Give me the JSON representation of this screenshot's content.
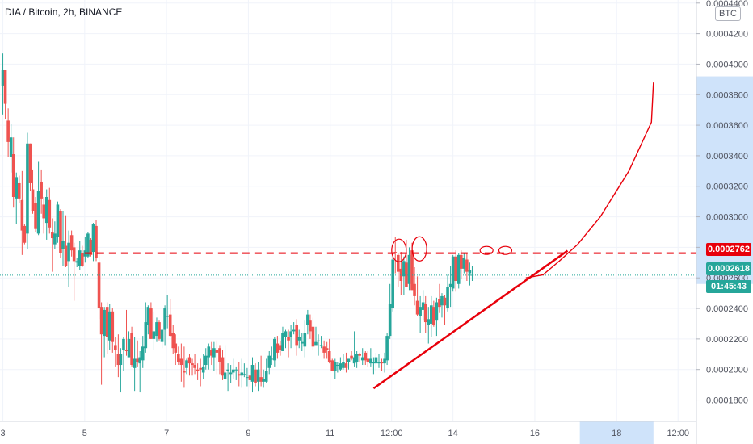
{
  "header": {
    "title": "DIA / Bitcoin, 2h, BINANCE"
  },
  "scale": {
    "currency": "BTC"
  },
  "price_labels": {
    "resistance": "0.0002762",
    "last_price": "0.0002618",
    "countdown": "01:45:43"
  },
  "colors": {
    "up": "#26a69a",
    "down": "#ef5350",
    "drawing": "#e8000b",
    "last_price": "#26a69a",
    "countdown_bg": "#26a69a",
    "highlight": "#cfe3fa"
  },
  "chart_data": {
    "type": "candlestick",
    "title": "DIA / Bitcoin, 2h, BINANCE",
    "ylim": [
      0.000166,
      0.000442
    ],
    "y_ticks": [
      "0.0001800",
      "0.0002000",
      "0.0002200",
      "0.0002400",
      "0.0002600",
      "0.0002800",
      "0.0003000",
      "0.0003200",
      "0.0003400",
      "0.0003600",
      "0.0003800",
      "0.0004000",
      "0.0004200",
      "0.0004400"
    ],
    "y_tick_values": [
      0.00018,
      0.0002,
      0.00022,
      0.00024,
      0.00026,
      0.00028,
      0.0003,
      0.00032,
      0.00034,
      0.00036,
      0.00038,
      0.0004,
      0.00042,
      0.00044
    ],
    "x_ticks": [
      "3",
      "5",
      "7",
      "9",
      "11",
      "12:00",
      "14",
      "16",
      "18",
      "12:00"
    ],
    "x_tick_days": [
      0,
      2,
      4,
      6,
      8,
      9.5,
      11,
      13,
      15,
      16.5
    ],
    "xlim": [
      -0.07,
      16.95
    ],
    "last_price": 0.0002618,
    "resistance": 0.0002762,
    "trendline": [
      [
        9.06,
        0.0001876
      ],
      [
        13.8,
        0.0002778
      ]
    ],
    "projection": [
      [
        12.78,
        0.00026
      ],
      [
        13.2,
        0.000262
      ],
      [
        13.6,
        0.000271
      ],
      [
        14.05,
        0.000282
      ],
      [
        14.6,
        0.0003
      ],
      [
        15.3,
        0.00033
      ],
      [
        15.85,
        0.000362
      ],
      [
        15.9,
        0.000388
      ]
    ],
    "candles": [
      [
        -0.0,
        0.000386,
        0.000407,
        0.000367,
        0.000396
      ],
      [
        0.06,
        0.000396,
        0.000396,
        0.000364,
        0.000374
      ],
      [
        0.13,
        0.000363,
        0.000371,
        0.000339,
        0.000349
      ],
      [
        0.2,
        0.000339,
        0.000361,
        0.000329,
        0.000352
      ],
      [
        0.26,
        0.000341,
        0.000352,
        0.000306,
        0.000313
      ],
      [
        0.33,
        0.000312,
        0.000329,
        0.000295,
        0.000326
      ],
      [
        0.4,
        0.000322,
        0.000327,
        0.000309,
        0.000312
      ],
      [
        0.47,
        0.000311,
        0.00033,
        0.000275,
        0.000291
      ],
      [
        0.53,
        0.000294,
        0.000295,
        0.000282,
        0.000283
      ],
      [
        0.6,
        0.000289,
        0.000355,
        0.000279,
        0.000348
      ],
      [
        0.67,
        0.000348,
        0.000348,
        0.000317,
        0.000322
      ],
      [
        0.73,
        0.000318,
        0.000331,
        0.000302,
        0.000304
      ],
      [
        0.8,
        0.000309,
        0.000313,
        0.00029,
        0.000292
      ],
      [
        0.87,
        0.000289,
        0.000336,
        0.000288,
        0.000317
      ],
      [
        0.94,
        0.000323,
        0.000331,
        0.000302,
        0.000312
      ],
      [
        1.0,
        0.000308,
        0.000313,
        0.000289,
        0.000299
      ],
      [
        1.07,
        0.000296,
        0.000318,
        0.000285,
        0.000313
      ],
      [
        1.14,
        0.000311,
        0.000319,
        0.000289,
        0.000293
      ],
      [
        1.21,
        0.00029,
        0.000299,
        0.000264,
        0.000286
      ],
      [
        1.27,
        0.000282,
        0.000297,
        0.000279,
        0.000289
      ],
      [
        1.34,
        0.000287,
        0.00031,
        0.000283,
        0.000308
      ],
      [
        1.41,
        0.000304,
        0.000305,
        0.000273,
        0.000276
      ],
      [
        1.47,
        0.000279,
        0.000304,
        0.000268,
        0.000284
      ],
      [
        1.54,
        0.000281,
        0.000301,
        0.000267,
        0.000268
      ],
      [
        1.61,
        0.000271,
        0.000291,
        0.000254,
        0.000283
      ],
      [
        1.68,
        0.000288,
        0.000291,
        0.000274,
        0.000278
      ],
      [
        1.74,
        0.00028,
        0.000283,
        0.000245,
        0.000271
      ],
      [
        1.81,
        0.00027,
        0.000273,
        0.000267,
        0.000271
      ],
      [
        1.88,
        0.000268,
        0.000284,
        0.000265,
        0.000278
      ],
      [
        1.94,
        0.000276,
        0.000281,
        0.000267,
        0.000268
      ],
      [
        2.01,
        0.000274,
        0.000287,
        0.00027,
        0.000278
      ],
      [
        2.08,
        0.000274,
        0.00029,
        0.000273,
        0.000289
      ],
      [
        2.15,
        0.000285,
        0.000286,
        0.000274,
        0.000275
      ],
      [
        2.21,
        0.000277,
        0.000296,
        0.000271,
        0.000295
      ],
      [
        2.28,
        0.000294,
        0.000298,
        0.000271,
        0.000273
      ],
      [
        2.35,
        0.00027,
        0.000278,
        0.000233,
        0.00024
      ],
      [
        2.41,
        0.000241,
        0.000244,
        0.00019,
        0.000223
      ],
      [
        2.48,
        0.000222,
        0.000241,
        0.000208,
        0.000239
      ],
      [
        2.55,
        0.000241,
        0.000244,
        0.00021,
        0.000221
      ],
      [
        2.61,
        0.000219,
        0.000243,
        0.000213,
        0.000238
      ],
      [
        2.68,
        0.000238,
        0.00024,
        0.000211,
        0.000218
      ],
      [
        2.75,
        0.000216,
        0.000221,
        0.000202,
        0.000213
      ],
      [
        2.82,
        0.00021,
        0.000223,
        0.000195,
        0.000203
      ],
      [
        2.88,
        0.000203,
        0.000214,
        0.000185,
        0.00021
      ],
      [
        2.95,
        0.000213,
        0.000221,
        0.000199,
        0.00022
      ],
      [
        3.02,
        0.000213,
        0.000239,
        0.000209,
        0.000212
      ],
      [
        3.08,
        0.000208,
        0.000225,
        0.000208,
        0.00022
      ],
      [
        3.15,
        0.000224,
        0.000228,
        0.000202,
        0.000203
      ],
      [
        3.22,
        0.000201,
        0.000221,
        0.000186,
        0.000207
      ],
      [
        3.29,
        0.000207,
        0.000219,
        0.000202,
        0.000205
      ],
      [
        3.35,
        0.000204,
        0.000212,
        0.000185,
        0.000208
      ],
      [
        3.42,
        0.000206,
        0.000222,
        0.000201,
        0.000215
      ],
      [
        3.49,
        0.000214,
        0.000244,
        0.000211,
        0.000231
      ],
      [
        3.55,
        0.000229,
        0.000242,
        0.000223,
        0.000241
      ],
      [
        3.62,
        0.00024,
        0.000244,
        0.00022,
        0.00022
      ],
      [
        3.69,
        0.00022,
        0.000238,
        0.000213,
        0.000225
      ],
      [
        3.76,
        0.000222,
        0.000234,
        0.000218,
        0.000231
      ],
      [
        3.82,
        0.000231,
        0.000232,
        0.000219,
        0.00022
      ],
      [
        3.89,
        0.000218,
        0.000227,
        0.000214,
        0.000226
      ],
      [
        3.96,
        0.000226,
        0.000242,
        0.000216,
        0.00024
      ],
      [
        4.02,
        0.000235,
        0.000249,
        0.000227,
        0.000235
      ],
      [
        4.09,
        0.000236,
        0.000246,
        0.000221,
        0.000222
      ],
      [
        4.16,
        0.000224,
        0.000229,
        0.00021,
        0.000214
      ],
      [
        4.22,
        0.000217,
        0.000223,
        0.000203,
        0.000211
      ],
      [
        4.29,
        0.00021,
        0.000215,
        0.000203,
        0.000205
      ],
      [
        4.36,
        0.000207,
        0.000217,
        0.000192,
        0.000203
      ],
      [
        4.43,
        0.000199,
        0.000215,
        0.000188,
        0.000198
      ],
      [
        4.49,
        0.000201,
        0.000207,
        0.000197,
        0.000206
      ],
      [
        4.56,
        0.000208,
        0.00021,
        0.000196,
        0.000204
      ],
      [
        4.63,
        0.000204,
        0.000207,
        0.000196,
        0.000203
      ],
      [
        4.69,
        0.000203,
        0.00021,
        0.000197,
        0.000201
      ],
      [
        4.76,
        0.0002,
        0.000204,
        0.000193,
        0.000199
      ],
      [
        4.83,
        0.000201,
        0.000207,
        0.000189,
        0.0002
      ],
      [
        4.9,
        0.000198,
        0.00021,
        0.000194,
        0.000202
      ],
      [
        4.96,
        0.000203,
        0.000214,
        0.0002,
        0.000209
      ],
      [
        5.03,
        0.000208,
        0.000217,
        0.0002,
        0.000215
      ],
      [
        5.1,
        0.000213,
        0.000218,
        0.000203,
        0.000209
      ],
      [
        5.16,
        0.000208,
        0.000218,
        0.000199,
        0.000214
      ],
      [
        5.23,
        0.000213,
        0.000219,
        0.000197,
        0.000211
      ],
      [
        5.3,
        0.000214,
        0.000216,
        0.000197,
        0.000205
      ],
      [
        5.37,
        0.000208,
        0.000213,
        0.000193,
        0.000196
      ],
      [
        5.43,
        0.000194,
        0.000216,
        0.000193,
        0.000198
      ],
      [
        5.5,
        0.000199,
        0.000204,
        0.000186,
        0.0002
      ],
      [
        5.57,
        0.000197,
        0.000203,
        0.000191,
        0.000198
      ],
      [
        5.63,
        0.000198,
        0.000207,
        0.000194,
        0.0002
      ],
      [
        5.7,
        0.0002,
        0.000202,
        0.000193,
        0.0002
      ],
      [
        5.77,
        0.000197,
        0.000205,
        0.000189,
        0.000196
      ],
      [
        5.84,
        0.000196,
        0.000207,
        0.000188,
        0.000198
      ],
      [
        5.9,
        0.000197,
        0.000204,
        0.000195,
        0.000197
      ],
      [
        5.97,
        0.000195,
        0.000201,
        0.000189,
        0.000195
      ],
      [
        6.04,
        0.000196,
        0.000197,
        0.000188,
        0.000193
      ],
      [
        6.1,
        0.000192,
        0.000208,
        0.000185,
        0.000203
      ],
      [
        6.17,
        0.0002,
        0.000204,
        0.000189,
        0.000191
      ],
      [
        6.24,
        0.000192,
        0.000205,
        0.000186,
        0.0002
      ],
      [
        6.31,
        0.000195,
        0.000209,
        0.000189,
        0.000192
      ],
      [
        6.37,
        0.000192,
        0.0002,
        0.000188,
        0.000194
      ],
      [
        6.44,
        0.000192,
        0.000207,
        0.000191,
        0.000199
      ],
      [
        6.51,
        0.000201,
        0.000212,
        0.000197,
        0.000209
      ],
      [
        6.57,
        0.000207,
        0.000215,
        0.000203,
        0.000207
      ],
      [
        6.64,
        0.000206,
        0.000221,
        0.000202,
        0.00022
      ],
      [
        6.71,
        0.000217,
        0.000222,
        0.000207,
        0.000211
      ],
      [
        6.78,
        0.000216,
        0.000219,
        0.000209,
        0.000213
      ],
      [
        6.84,
        0.000212,
        0.000228,
        0.000212,
        0.000224
      ],
      [
        6.91,
        0.000221,
        0.000226,
        0.000214,
        0.000225
      ],
      [
        6.98,
        0.000221,
        0.000226,
        0.000208,
        0.000219
      ],
      [
        7.04,
        0.000221,
        0.000229,
        0.000214,
        0.000225
      ],
      [
        7.11,
        0.000225,
        0.000231,
        0.000223,
        0.000226
      ],
      [
        7.18,
        0.000229,
        0.000233,
        0.000209,
        0.000216
      ],
      [
        7.24,
        0.000219,
        0.000226,
        0.000214,
        0.000221
      ],
      [
        7.31,
        0.000217,
        0.000224,
        0.000212,
        0.000218
      ],
      [
        7.38,
        0.000215,
        0.000232,
        0.000208,
        0.000224
      ],
      [
        7.45,
        0.000229,
        0.000239,
        0.000223,
        0.000236
      ],
      [
        7.51,
        0.000232,
        0.000236,
        0.00022,
        0.000225
      ],
      [
        7.58,
        0.000228,
        0.000234,
        0.000213,
        0.000215
      ],
      [
        7.65,
        0.000216,
        0.000228,
        0.000216,
        0.000218
      ],
      [
        7.71,
        0.000219,
        0.000223,
        0.000209,
        0.000219
      ],
      [
        7.78,
        0.000216,
        0.000222,
        0.000214,
        0.000216
      ],
      [
        7.85,
        0.000215,
        0.000219,
        0.000207,
        0.000211
      ],
      [
        7.92,
        0.000214,
        0.000218,
        0.000207,
        0.000213
      ],
      [
        7.98,
        0.000212,
        0.00022,
        0.000204,
        0.000205
      ],
      [
        8.05,
        0.000206,
        0.000207,
        0.000199,
        0.000199
      ],
      [
        8.12,
        0.000199,
        0.000207,
        0.000194,
        0.000205
      ],
      [
        8.18,
        0.000203,
        0.000205,
        0.000198,
        0.000203
      ],
      [
        8.25,
        0.0002,
        0.000208,
        0.000199,
        0.000204
      ],
      [
        8.32,
        0.000201,
        0.00021,
        0.0002,
        0.000205
      ],
      [
        8.39,
        0.000204,
        0.000211,
        0.000198,
        0.000201
      ],
      [
        8.45,
        0.000205,
        0.000207,
        0.0002,
        0.000207
      ],
      [
        8.52,
        0.000209,
        0.000212,
        0.000206,
        0.000207
      ],
      [
        8.59,
        0.000204,
        0.000225,
        0.000202,
        0.000208
      ],
      [
        8.65,
        0.000205,
        0.000212,
        0.000201,
        0.00021
      ],
      [
        8.72,
        0.00021,
        0.000211,
        0.000205,
        0.000209
      ],
      [
        8.79,
        0.000206,
        0.000214,
        0.000203,
        0.000208
      ],
      [
        8.86,
        0.000211,
        0.000212,
        0.000203,
        0.000206
      ],
      [
        8.92,
        0.000207,
        0.000212,
        0.000202,
        0.000205
      ],
      [
        8.99,
        0.000204,
        0.000214,
        0.000202,
        0.000207
      ],
      [
        9.06,
        0.000204,
        0.000208,
        0.000197,
        0.000205
      ],
      [
        9.12,
        0.000204,
        0.000211,
        0.000199,
        0.000208
      ],
      [
        9.19,
        0.000204,
        0.00021,
        0.000201,
        0.000205
      ],
      [
        9.26,
        0.000205,
        0.000207,
        0.000199,
        0.000204
      ],
      [
        9.33,
        0.000204,
        0.000211,
        0.000198,
        0.000207
      ],
      [
        9.39,
        0.000206,
        0.000224,
        0.000203,
        0.000222
      ],
      [
        9.46,
        0.000222,
        0.000256,
        0.00022,
        0.000243
      ],
      [
        9.53,
        0.00024,
        0.000275,
        0.000238,
        0.000272
      ],
      [
        9.59,
        0.000277,
        0.000287,
        0.000263,
        0.000276
      ],
      [
        9.66,
        0.000275,
        0.000276,
        0.000254,
        0.000264
      ],
      [
        9.73,
        0.000266,
        0.000277,
        0.000249,
        0.000258
      ],
      [
        9.8,
        0.000261,
        0.000274,
        0.000249,
        0.000271
      ],
      [
        9.86,
        0.00027,
        0.000285,
        0.000254,
        0.000254
      ],
      [
        9.93,
        0.000256,
        0.00028,
        0.000252,
        0.000275
      ],
      [
        10.0,
        0.000278,
        0.000283,
        0.000252,
        0.000252
      ],
      [
        10.06,
        0.000256,
        0.000267,
        0.000242,
        0.000248
      ],
      [
        10.13,
        0.000245,
        0.000261,
        0.000235,
        0.000236
      ],
      [
        10.2,
        0.000235,
        0.000248,
        0.000224,
        0.000241
      ],
      [
        10.27,
        0.000239,
        0.000252,
        0.000232,
        0.000244
      ],
      [
        10.33,
        0.000243,
        0.000248,
        0.000224,
        0.000231
      ],
      [
        10.4,
        0.000229,
        0.000241,
        0.000217,
        0.000233
      ],
      [
        10.47,
        0.00023,
        0.000248,
        0.000221,
        0.000242
      ],
      [
        10.53,
        0.000241,
        0.000245,
        0.000228,
        0.000229
      ],
      [
        10.6,
        0.000232,
        0.000247,
        0.000222,
        0.000244
      ],
      [
        10.67,
        0.000246,
        0.000256,
        0.000237,
        0.000241
      ],
      [
        10.73,
        0.000242,
        0.00025,
        0.000234,
        0.000248
      ],
      [
        10.8,
        0.000247,
        0.000249,
        0.000229,
        0.000242
      ],
      [
        10.87,
        0.00024,
        0.000262,
        0.000238,
        0.000254
      ],
      [
        10.94,
        0.000254,
        0.000268,
        0.000241,
        0.000256
      ],
      [
        11.0,
        0.000253,
        0.000275,
        0.000251,
        0.000274
      ],
      [
        11.07,
        0.000274,
        0.000278,
        0.000251,
        0.000258
      ],
      [
        11.14,
        0.000256,
        0.000276,
        0.000253,
        0.000275
      ],
      [
        11.2,
        0.000275,
        0.000278,
        0.000259,
        0.000266
      ],
      [
        11.27,
        0.000266,
        0.000276,
        0.000263,
        0.000273
      ],
      [
        11.34,
        0.000272,
        0.000276,
        0.000258,
        0.000264
      ],
      [
        11.41,
        0.000263,
        0.00027,
        0.000255,
        0.000265
      ],
      [
        11.47,
        0.000262,
        0.000268,
        0.000258,
        0.000262
      ]
    ]
  }
}
